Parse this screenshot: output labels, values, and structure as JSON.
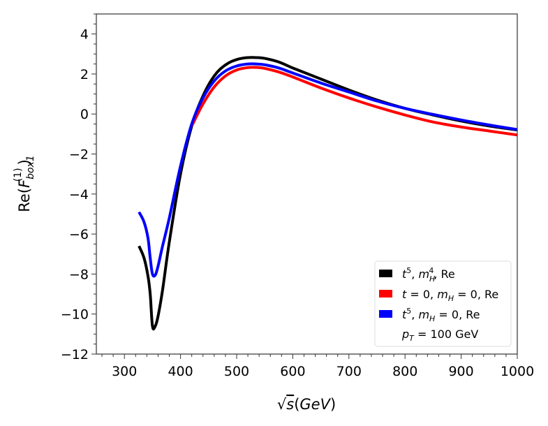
{
  "chart_data": {
    "type": "line",
    "title": "",
    "xlabel": "√s(GeV)",
    "ylabel": "Re(F_box1^(1))",
    "xlim": [
      250,
      1000
    ],
    "ylim": [
      -12,
      5
    ],
    "xticks": [
      300,
      400,
      500,
      600,
      700,
      800,
      900,
      1000
    ],
    "xtick_labels": [
      "300",
      "400",
      "500",
      "600",
      "700",
      "800",
      "900",
      "1000"
    ],
    "yticks": [
      -12,
      -10,
      -8,
      -6,
      -4,
      -2,
      0,
      2,
      4
    ],
    "ytick_labels": [
      "−12",
      "−10",
      "−8",
      "−6",
      "−4",
      "−2",
      "0",
      "2",
      "4"
    ],
    "grid": false,
    "legend_position": "lower-right",
    "annotation": "p_T = 100 GeV",
    "series": [
      {
        "name": "t^5, m_H^4, Re",
        "color": "#000000",
        "x": [
          326,
          335,
          342,
          346,
          350,
          355,
          360,
          368,
          380,
          400,
          420,
          440,
          460,
          480,
          500,
          520,
          535,
          550,
          575,
          600,
          650,
          700,
          750,
          800,
          850,
          900,
          950,
          1000
        ],
        "y": [
          -6.6,
          -7.2,
          -8.1,
          -9.0,
          -10.6,
          -10.6,
          -10.1,
          -8.8,
          -6.4,
          -3.0,
          -0.6,
          0.9,
          1.9,
          2.45,
          2.72,
          2.82,
          2.82,
          2.78,
          2.6,
          2.3,
          1.75,
          1.2,
          0.7,
          0.28,
          -0.05,
          -0.35,
          -0.6,
          -0.8
        ]
      },
      {
        "name": "t = 0, m_H = 0, Re",
        "color": "#ff0000",
        "x": [
          420,
          440,
          460,
          480,
          500,
          520,
          535,
          550,
          575,
          600,
          650,
          700,
          750,
          800,
          850,
          900,
          950,
          1000
        ],
        "y": [
          -0.6,
          0.5,
          1.35,
          1.9,
          2.2,
          2.32,
          2.33,
          2.28,
          2.1,
          1.85,
          1.3,
          0.8,
          0.35,
          -0.05,
          -0.4,
          -0.65,
          -0.85,
          -1.05
        ]
      },
      {
        "name": "t^5, m_H = 0, Re",
        "color": "#0000ff",
        "x": [
          326,
          335,
          342,
          346,
          350,
          355,
          360,
          368,
          380,
          400,
          420,
          440,
          460,
          480,
          500,
          520,
          535,
          550,
          575,
          600,
          650,
          700,
          750,
          800,
          850,
          900,
          950,
          1000
        ],
        "y": [
          -4.9,
          -5.4,
          -6.2,
          -7.2,
          -8.0,
          -8.05,
          -7.6,
          -6.6,
          -5.2,
          -2.6,
          -0.5,
          0.8,
          1.65,
          2.15,
          2.4,
          2.5,
          2.5,
          2.46,
          2.3,
          2.05,
          1.55,
          1.1,
          0.65,
          0.28,
          -0.02,
          -0.3,
          -0.55,
          -0.78
        ]
      }
    ],
    "legend": {
      "entries": [
        {
          "label_main": "t",
          "sup": "5",
          "rest_a": ", m",
          "sub_a": "H",
          "sup_a": "4",
          "rest_b": ", Re",
          "color": "#000000"
        },
        {
          "label_text": "t = 0, m",
          "sub": "H",
          "tail": " = 0, Re",
          "color": "#ff0000"
        },
        {
          "label_main": "t",
          "sup": "5",
          "rest_a": ", m",
          "sub_a": "H",
          "rest_b": " = 0, Re",
          "color": "#0000ff"
        }
      ],
      "note": {
        "p": "p",
        "sub": "T",
        "tail": " = 100 GeV"
      }
    }
  }
}
